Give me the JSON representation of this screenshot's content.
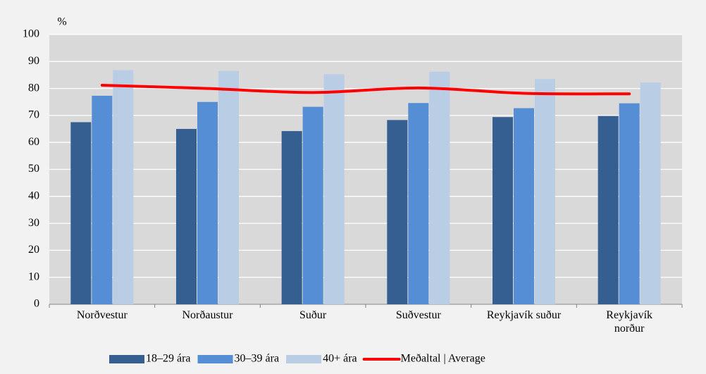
{
  "chart_data": {
    "type": "bar",
    "y_label": "%",
    "categories": [
      "Norðvestur",
      "Norðaustur",
      "Suður",
      "Suðvestur",
      "Reykjavík suður",
      "Reykjavík\nnorður"
    ],
    "series": [
      {
        "name": "18–29 ára",
        "color": "#355e91",
        "values": [
          67.5,
          65,
          64.2,
          68.3,
          69.4,
          69.8
        ]
      },
      {
        "name": "30–39 ára",
        "color": "#558ed5",
        "values": [
          77.3,
          75,
          73.2,
          74.6,
          72.7,
          74.5
        ]
      },
      {
        "name": "40+ ára",
        "color": "#b9cde5",
        "values": [
          86.8,
          86.5,
          85.3,
          86.2,
          83.5,
          82.2
        ]
      },
      {
        "name": "Meðaltal | Average",
        "type": "line",
        "color": "#ff0000",
        "values": [
          81.2,
          80,
          78.5,
          80.2,
          78.2,
          78
        ]
      }
    ],
    "ylim": [
      0,
      100
    ],
    "yticks": [
      0,
      10,
      20,
      30,
      40,
      50,
      60,
      70,
      80,
      90,
      100
    ],
    "grid": true
  }
}
